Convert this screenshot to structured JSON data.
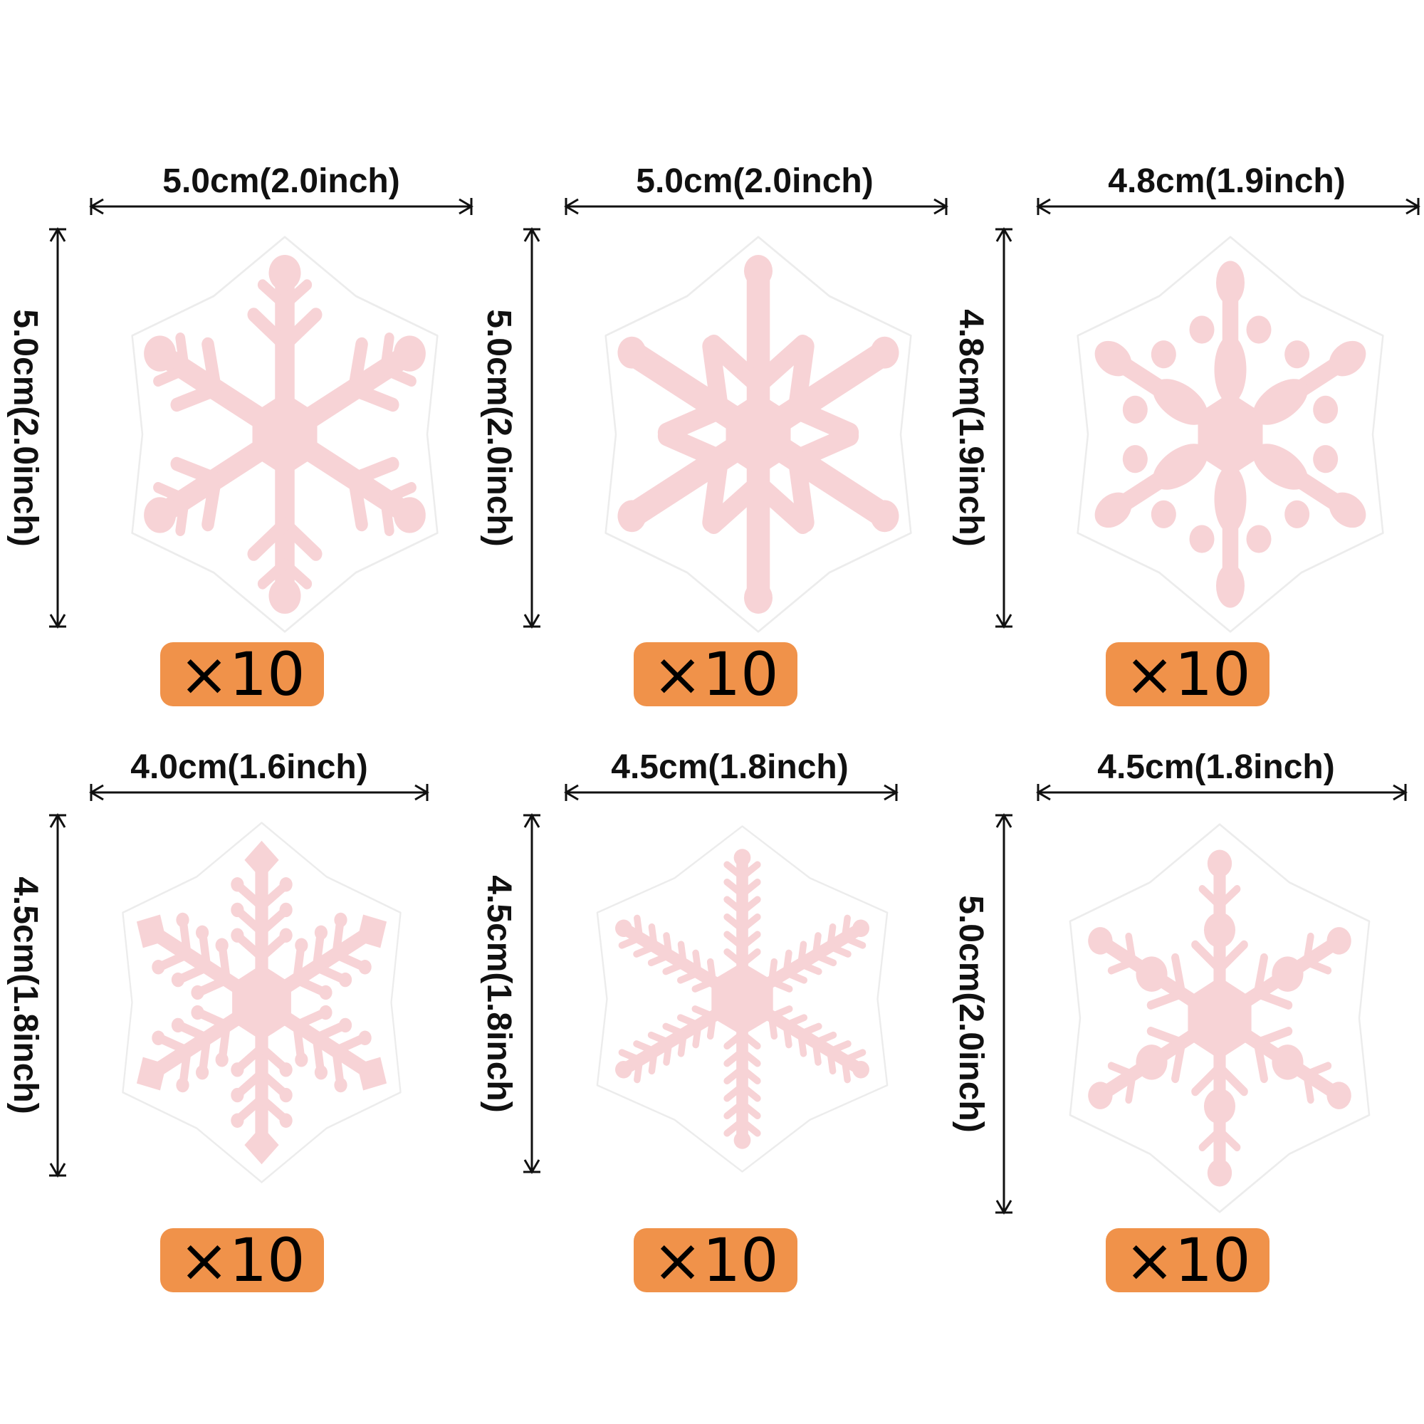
{
  "colors": {
    "flake_fill": "#f7d3d6",
    "flake_backing": "#ffffff",
    "badge": "#f0924a",
    "line": "#111111"
  },
  "items": [
    {
      "width_label": "5.0cm(2.0inch)",
      "height_label": "5.0cm(2.0inch)",
      "quantity": "×10",
      "style": 0
    },
    {
      "width_label": "5.0cm(2.0inch)",
      "height_label": "5.0cm(2.0inch)",
      "quantity": "×10",
      "style": 1
    },
    {
      "width_label": "4.8cm(1.9inch)",
      "height_label": "4.8cm(1.9inch)",
      "quantity": "×10",
      "style": 2
    },
    {
      "width_label": "4.0cm(1.6inch)",
      "height_label": "4.5cm(1.8inch)",
      "quantity": "×10",
      "style": 3
    },
    {
      "width_label": "4.5cm(1.8inch)",
      "height_label": "4.5cm(1.8inch)",
      "quantity": "×10",
      "style": 4
    },
    {
      "width_label": "4.5cm(1.8inch)",
      "height_label": "5.0cm(2.0inch)",
      "quantity": "×10",
      "style": 5
    }
  ]
}
